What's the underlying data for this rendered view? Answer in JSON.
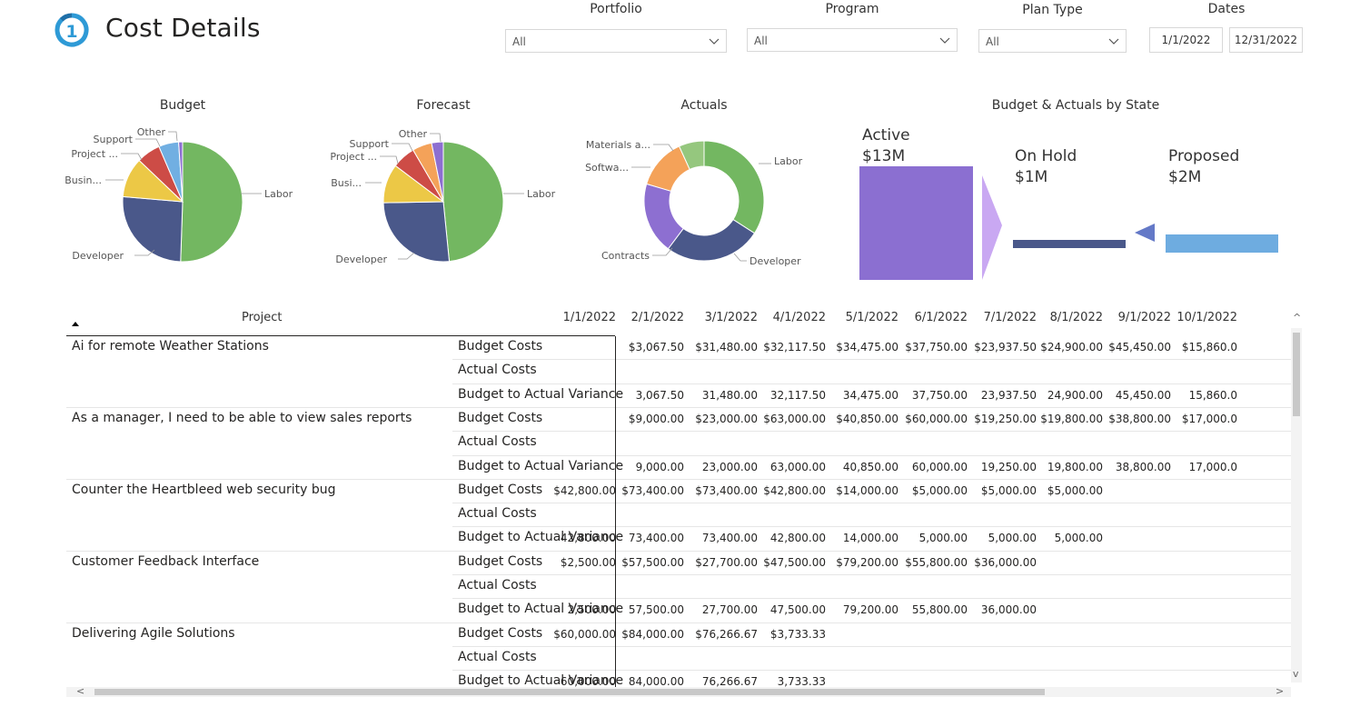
{
  "header": {
    "title": "Cost Details"
  },
  "filters": {
    "portfolio": {
      "label": "Portfolio",
      "value": "All"
    },
    "program": {
      "label": "Program",
      "value": "All"
    },
    "plan_type": {
      "label": "Plan Type",
      "value": "All"
    },
    "dates": {
      "label": "Dates",
      "start": "1/1/2022",
      "end": "12/31/2022"
    }
  },
  "chart_data": [
    {
      "type": "pie",
      "title": "Budget",
      "labels": [
        "Labor",
        "Developer",
        "Busin...",
        "Project ...",
        "Support",
        "Other"
      ],
      "values": [
        47,
        24,
        10,
        6,
        5,
        1
      ]
    },
    {
      "type": "pie",
      "title": "Forecast",
      "labels": [
        "Labor",
        "Developer",
        "Busi...",
        "Project ...",
        "Support",
        "Other"
      ],
      "values": [
        46,
        25,
        10,
        6,
        5,
        3
      ]
    },
    {
      "type": "pie",
      "title": "Actuals",
      "labels": [
        "Labor",
        "Developer",
        "Contracts",
        "Softwa...",
        "Materials a..."
      ],
      "values": [
        30,
        23,
        17,
        12,
        6
      ]
    },
    {
      "type": "bar",
      "title": "Budget & Actuals by State",
      "categories": [
        "Active",
        "On Hold",
        "Proposed"
      ],
      "values": [
        13,
        1,
        2
      ],
      "value_labels": [
        "$13M",
        "$1M",
        "$2M"
      ]
    }
  ],
  "colors": {
    "green": "#73B761",
    "navy": "#4A588A",
    "yellow": "#ECC846",
    "red": "#CD4C46",
    "blue": "#71AFE2",
    "purple": "#8D6FD1",
    "orange": "#F4A259",
    "teal": "#96D3D8",
    "lightgreen": "#95C77E",
    "active": "#8B6FD1",
    "lilac": "#C9A8F2",
    "proposed": "#6EACE0"
  },
  "table": {
    "project_header": "Project",
    "dates": [
      "1/1/2022",
      "2/1/2022",
      "3/1/2022",
      "4/1/2022",
      "5/1/2022",
      "6/1/2022",
      "7/1/2022",
      "8/1/2022",
      "9/1/2022",
      "10/1/2022"
    ],
    "projects": [
      {
        "name": "Ai for remote Weather Stations",
        "rows": [
          {
            "metric": "Budget Costs",
            "values": [
              "",
              "$3,067.50",
              "$31,480.00",
              "$32,117.50",
              "$34,475.00",
              "$37,750.00",
              "$23,937.50",
              "$24,900.00",
              "$45,450.00",
              "$15,860.0"
            ]
          },
          {
            "metric": "Actual Costs",
            "values": [
              "",
              "",
              "",
              "",
              "",
              "",
              "",
              "",
              "",
              ""
            ]
          },
          {
            "metric": "Budget to Actual Variance",
            "values": [
              "",
              "3,067.50",
              "31,480.00",
              "32,117.50",
              "34,475.00",
              "37,750.00",
              "23,937.50",
              "24,900.00",
              "45,450.00",
              "15,860.0"
            ]
          }
        ]
      },
      {
        "name": "As a manager, I need to be able to view sales reports",
        "rows": [
          {
            "metric": "Budget Costs",
            "values": [
              "",
              "$9,000.00",
              "$23,000.00",
              "$63,000.00",
              "$40,850.00",
              "$60,000.00",
              "$19,250.00",
              "$19,800.00",
              "$38,800.00",
              "$17,000.0"
            ]
          },
          {
            "metric": "Actual Costs",
            "values": [
              "",
              "",
              "",
              "",
              "",
              "",
              "",
              "",
              "",
              ""
            ]
          },
          {
            "metric": "Budget to Actual Variance",
            "values": [
              "",
              "9,000.00",
              "23,000.00",
              "63,000.00",
              "40,850.00",
              "60,000.00",
              "19,250.00",
              "19,800.00",
              "38,800.00",
              "17,000.0"
            ]
          }
        ]
      },
      {
        "name": "Counter the Heartbleed web security bug",
        "rows": [
          {
            "metric": "Budget Costs",
            "values": [
              "$42,800.00",
              "$73,400.00",
              "$73,400.00",
              "$42,800.00",
              "$14,000.00",
              "$5,000.00",
              "$5,000.00",
              "$5,000.00",
              "",
              ""
            ]
          },
          {
            "metric": "Actual Costs",
            "values": [
              "",
              "",
              "",
              "",
              "",
              "",
              "",
              "",
              "",
              ""
            ]
          },
          {
            "metric": "Budget to Actual Variance",
            "values": [
              "42,800.00",
              "73,400.00",
              "73,400.00",
              "42,800.00",
              "14,000.00",
              "5,000.00",
              "5,000.00",
              "5,000.00",
              "",
              ""
            ]
          }
        ]
      },
      {
        "name": "Customer Feedback Interface",
        "rows": [
          {
            "metric": "Budget Costs",
            "values": [
              "$2,500.00",
              "$57,500.00",
              "$27,700.00",
              "$47,500.00",
              "$79,200.00",
              "$55,800.00",
              "$36,000.00",
              "",
              "",
              ""
            ]
          },
          {
            "metric": "Actual Costs",
            "values": [
              "",
              "",
              "",
              "",
              "",
              "",
              "",
              "",
              "",
              ""
            ]
          },
          {
            "metric": "Budget to Actual Variance",
            "values": [
              "2,500.00",
              "57,500.00",
              "27,700.00",
              "47,500.00",
              "79,200.00",
              "55,800.00",
              "36,000.00",
              "",
              "",
              ""
            ]
          }
        ]
      },
      {
        "name": "Delivering Agile Solutions",
        "rows": [
          {
            "metric": "Budget Costs",
            "values": [
              "$60,000.00",
              "$84,000.00",
              "$76,266.67",
              "$3,733.33",
              "",
              "",
              "",
              "",
              "",
              ""
            ]
          },
          {
            "metric": "Actual Costs",
            "values": [
              "",
              "",
              "",
              "",
              "",
              "",
              "",
              "",
              "",
              ""
            ]
          },
          {
            "metric": "Budget to Actual Variance",
            "values": [
              "60,000.00",
              "84,000.00",
              "76,266.67",
              "3,733.33",
              "",
              "",
              "",
              "",
              "",
              ""
            ]
          }
        ]
      }
    ]
  },
  "scroll": {
    "left": "<",
    "right": ">",
    "up": "^",
    "down": "v"
  }
}
